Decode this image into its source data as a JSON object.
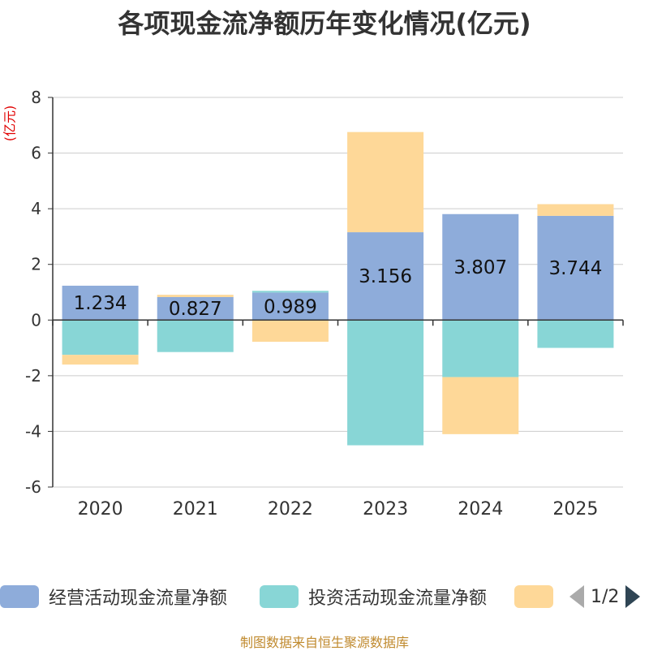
{
  "title": "各项现金流净额历年变化情况(亿元)",
  "y_unit_label": "(亿元)",
  "source": "制图数据来自恒生聚源数据库",
  "legend": {
    "items": [
      {
        "label": "经营活动现金流量净额",
        "color": "#8eacda"
      },
      {
        "label": "投资活动现金流量净额",
        "color": "#88d6d6"
      },
      {
        "label": "",
        "color": "#fed898"
      }
    ],
    "page_text": "1/2"
  },
  "chart_data": {
    "type": "bar",
    "stacked": true,
    "title": "各项现金流净额历年变化情况(亿元)",
    "ylabel": "(亿元)",
    "categories": [
      "2020",
      "2021",
      "2022",
      "2023",
      "2024",
      "2025"
    ],
    "ylim": [
      -6,
      8
    ],
    "yticks": [
      -6,
      -4,
      -2,
      0,
      2,
      4,
      6,
      8
    ],
    "series": [
      {
        "name": "经营活动现金流量净额",
        "color": "#8eacda",
        "values": [
          1.234,
          0.827,
          0.989,
          3.156,
          3.807,
          3.744
        ],
        "labels": [
          "1.234",
          "0.827",
          "0.989",
          "3.156",
          "3.807",
          "3.744"
        ]
      },
      {
        "name": "投资活动现金流量净额",
        "color": "#88d6d6",
        "values": [
          -1.25,
          -1.15,
          0.06,
          -4.5,
          -2.05,
          -1.0
        ]
      },
      {
        "name": "",
        "color": "#fed898",
        "values": [
          -0.35,
          0.08,
          -0.78,
          3.6,
          -2.05,
          0.42
        ]
      }
    ]
  }
}
